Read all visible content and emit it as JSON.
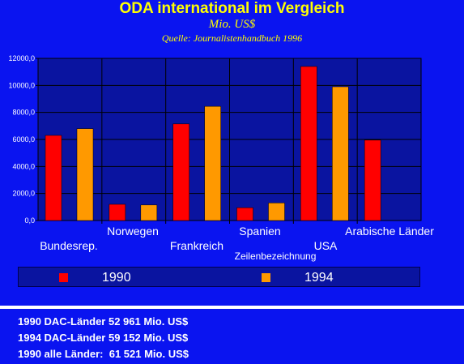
{
  "chart_data": {
    "type": "bar",
    "title": "ODA international im Vergleich",
    "subtitle": "Mio. US$",
    "source": "Quelle: Journalistenhandbuch 1996",
    "xlabel": "Zeilenbezeichnung",
    "ylabel": "",
    "categories": [
      "Bundesrep.",
      "Norwegen",
      "Frankreich",
      "Spanien",
      "USA",
      "Arabische Länder"
    ],
    "series": [
      {
        "name": "1990",
        "color": "#ff0000",
        "values": [
          6300,
          1200,
          7150,
          950,
          11400,
          5950
        ]
      },
      {
        "name": "1994",
        "color": "#ff9900",
        "values": [
          6800,
          1150,
          8450,
          1300,
          9900,
          null
        ]
      }
    ],
    "ylim": [
      0,
      12000
    ],
    "yticks": [
      "0,0",
      "2000,0",
      "4000,0",
      "6000,0",
      "8000,0",
      "10000,0",
      "12000,0"
    ],
    "grid": true,
    "legend": "bottom",
    "colors": {
      "background": "#0a14f0",
      "plot_background": "#0a14a0",
      "title": "#ffff00",
      "text": "#ffffff",
      "axis": "#000000"
    }
  },
  "summary": [
    {
      "label": "1990 DAC-Länder 52 961 Mio. US$"
    },
    {
      "label": "1994 DAC-Länder 59 152 Mio. US$"
    },
    {
      "label": "1990 alle Länder:  61 521 Mio. US$"
    }
  ]
}
